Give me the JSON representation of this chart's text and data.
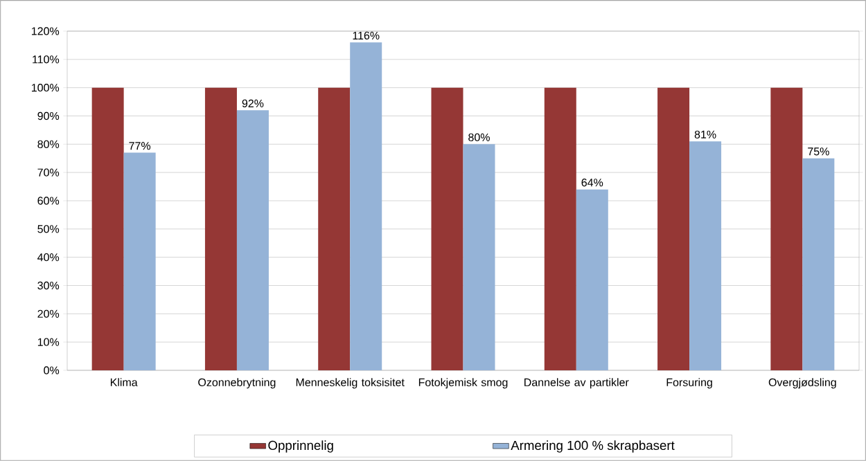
{
  "chart_data": {
    "type": "bar",
    "categories": [
      "Klima",
      "Ozonnebrytning",
      "Menneskelig toksisitet",
      "Fotokjemisk smog",
      "Dannelse av partikler",
      "Forsuring",
      "Overgjødsling"
    ],
    "series": [
      {
        "name": "Opprinnelig",
        "color": "#953735",
        "values": [
          100,
          100,
          100,
          100,
          100,
          100,
          100
        ]
      },
      {
        "name": "Armering 100 % skrapbasert",
        "color": "#95b3d7",
        "values": [
          77,
          92,
          116,
          80,
          64,
          81,
          75
        ],
        "value_labels": [
          "77%",
          "92%",
          "116%",
          "80%",
          "64%",
          "81%",
          "75%"
        ]
      }
    ],
    "ylim": [
      0,
      120
    ],
    "yticks": [
      {
        "value": 0,
        "label": "0%"
      },
      {
        "value": 10,
        "label": "10%"
      },
      {
        "value": 20,
        "label": "20%"
      },
      {
        "value": 30,
        "label": "30%"
      },
      {
        "value": 40,
        "label": "40%"
      },
      {
        "value": 50,
        "label": "50%"
      },
      {
        "value": 60,
        "label": "60%"
      },
      {
        "value": 70,
        "label": "70%"
      },
      {
        "value": 80,
        "label": "80%"
      },
      {
        "value": 90,
        "label": "90%"
      },
      {
        "value": 100,
        "label": "100%"
      },
      {
        "value": 110,
        "label": "110%"
      },
      {
        "value": 120,
        "label": "120%"
      }
    ],
    "grid": "y",
    "legend": "bottom"
  }
}
